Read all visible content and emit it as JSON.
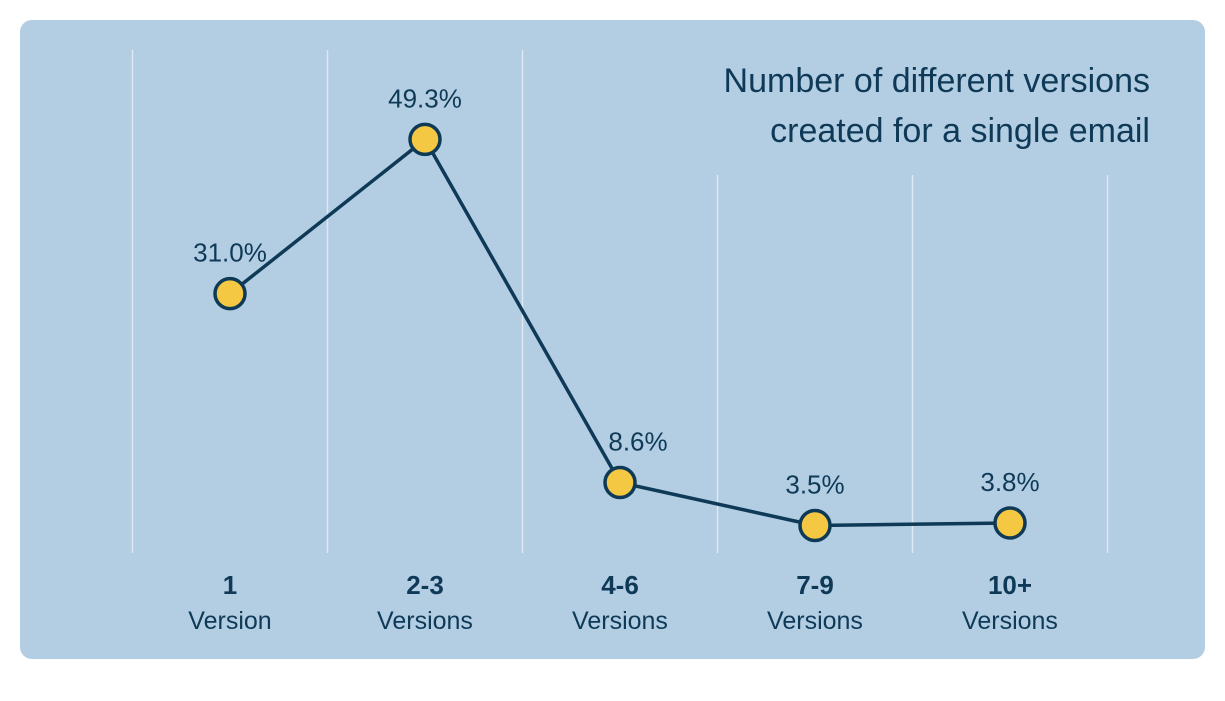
{
  "colors": {
    "background": "#b3cde3",
    "text": "#0e3a57",
    "line": "#0e3a57",
    "marker_fill": "#f4c842",
    "gridline": "#ffffff"
  },
  "chart_data": {
    "type": "line",
    "title": [
      "Number of different versions",
      "created for a single email"
    ],
    "categories": [
      {
        "top": "1",
        "bottom": "Version"
      },
      {
        "top": "2-3",
        "bottom": "Versions"
      },
      {
        "top": "4-6",
        "bottom": "Versions"
      },
      {
        "top": "7-9",
        "bottom": "Versions"
      },
      {
        "top": "10+",
        "bottom": "Versions"
      }
    ],
    "values": [
      31.0,
      49.3,
      8.6,
      3.5,
      3.8
    ],
    "value_labels": [
      "31.0%",
      "49.3%",
      "8.6%",
      "3.5%",
      "3.8%"
    ],
    "ylim": [
      0,
      55
    ],
    "grid": "vertical",
    "legend": "none"
  }
}
